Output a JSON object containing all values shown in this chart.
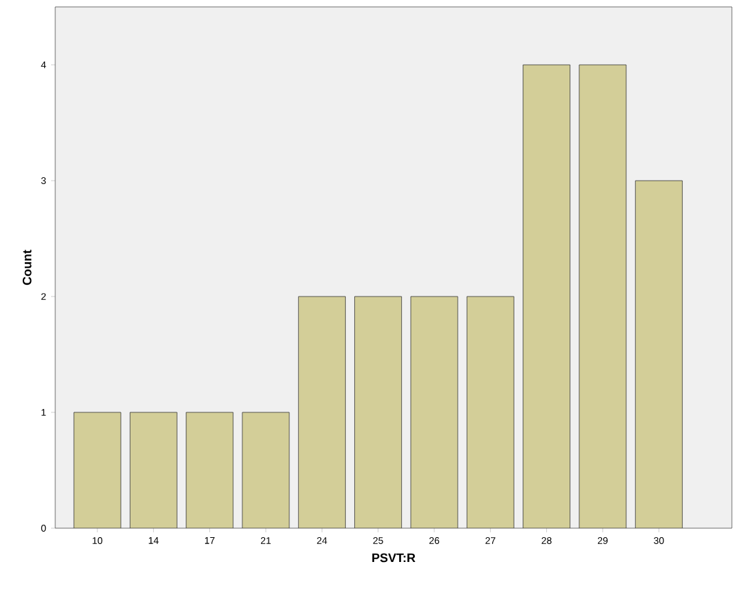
{
  "chart_data": {
    "type": "bar",
    "xlabel": "PSVT:R",
    "ylabel": "Count",
    "categories": [
      "10",
      "14",
      "17",
      "21",
      "24",
      "25",
      "26",
      "27",
      "28",
      "29",
      "30"
    ],
    "values": [
      1,
      1,
      1,
      1,
      2,
      2,
      2,
      2,
      4,
      4,
      3
    ],
    "color": "#d3ce98",
    "ylim": [
      0,
      4.5
    ],
    "yticks": [
      0,
      1,
      2,
      3,
      4
    ],
    "grid": false
  }
}
